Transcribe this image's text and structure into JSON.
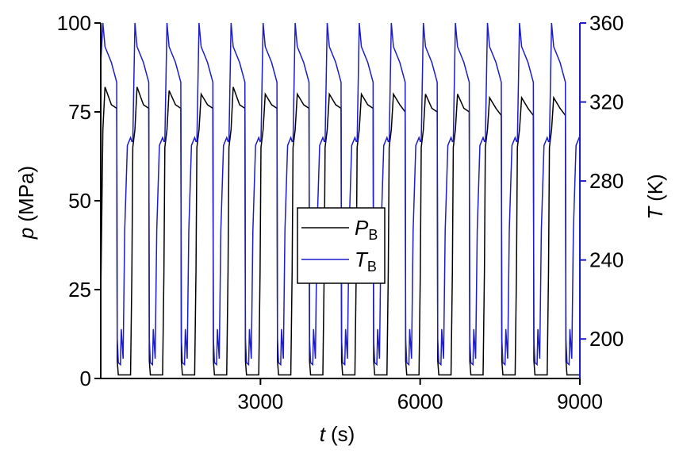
{
  "chart_data": {
    "type": "line",
    "x_label": {
      "symbol": "t",
      "unit": "(s)"
    },
    "y_label": {
      "symbol": "p",
      "unit": "(MPa)"
    },
    "y2_label": {
      "symbol": "T",
      "unit": "(K)"
    },
    "xlim": [
      0,
      9000
    ],
    "xticks": [
      3000,
      6000,
      9000
    ],
    "ylim": [
      0,
      100
    ],
    "yticks": [
      0,
      25,
      50,
      75,
      100
    ],
    "y2lim": [
      180,
      360
    ],
    "y2ticks": [
      200,
      240,
      280,
      320,
      360
    ],
    "legend": "center",
    "x": [
      0,
      40,
      80,
      200,
      300,
      310,
      330,
      370,
      385,
      420,
      450,
      500,
      560,
      585,
      602,
      642,
      682,
      802,
      902,
      912,
      932,
      972,
      987,
      1022,
      1052,
      1102,
      1162,
      1187,
      1204,
      1244,
      1284,
      1404,
      1504,
      1514,
      1534,
      1574,
      1589,
      1624,
      1654,
      1704,
      1764,
      1789,
      1806,
      1846,
      1886,
      2006,
      2106,
      2116,
      2136,
      2176,
      2191,
      2226,
      2256,
      2306,
      2366,
      2391,
      2408,
      2448,
      2488,
      2608,
      2708,
      2718,
      2738,
      2778,
      2793,
      2828,
      2858,
      2908,
      2968,
      2993,
      3010,
      3050,
      3090,
      3210,
      3310,
      3320,
      3340,
      3380,
      3395,
      3430,
      3460,
      3510,
      3570,
      3595,
      3612,
      3652,
      3692,
      3812,
      3912,
      3922,
      3942,
      3982,
      3997,
      4032,
      4062,
      4112,
      4172,
      4197,
      4214,
      4254,
      4294,
      4414,
      4514,
      4524,
      4544,
      4584,
      4599,
      4634,
      4664,
      4714,
      4774,
      4799,
      4816,
      4856,
      4896,
      5016,
      5116,
      5126,
      5146,
      5186,
      5201,
      5236,
      5266,
      5316,
      5376,
      5401,
      5418,
      5458,
      5498,
      5618,
      5718,
      5728,
      5748,
      5788,
      5803,
      5838,
      5868,
      5918,
      5978,
      6003,
      6020,
      6060,
      6100,
      6220,
      6320,
      6330,
      6350,
      6390,
      6405,
      6440,
      6470,
      6520,
      6580,
      6605,
      6622,
      6662,
      6702,
      6822,
      6922,
      6932,
      6952,
      6992,
      7007,
      7042,
      7072,
      7122,
      7182,
      7207,
      7224,
      7264,
      7304,
      7424,
      7524,
      7534,
      7554,
      7594,
      7609,
      7644,
      7674,
      7724,
      7784,
      7809,
      7826,
      7866,
      7906,
      8026,
      8126,
      8136,
      8156,
      8196,
      8211,
      8246,
      8276,
      8326,
      8386,
      8411,
      8428,
      8468,
      8508,
      8628,
      8728,
      8738,
      8758,
      8798,
      8813,
      8848,
      8878,
      8928,
      8988,
      9000
    ],
    "series": [
      {
        "name": "P",
        "name_sub": "B",
        "color": "#000000",
        "values": [
          23,
          70,
          82,
          77,
          76,
          5,
          1,
          1,
          1,
          1,
          1,
          1,
          1,
          30,
          65,
          70,
          82,
          77,
          76,
          5,
          1,
          1,
          1,
          1,
          1,
          1,
          1,
          30,
          65,
          70,
          81,
          77,
          76,
          5,
          1,
          1,
          1,
          1,
          1,
          1,
          1,
          30,
          65,
          70,
          80,
          77,
          76,
          5,
          1,
          1,
          1,
          1,
          1,
          1,
          1,
          30,
          65,
          70,
          82,
          77,
          76,
          5,
          1,
          1,
          1,
          1,
          1,
          1,
          1,
          30,
          65,
          70,
          80,
          77,
          76,
          5,
          1,
          1,
          1,
          1,
          1,
          1,
          1,
          30,
          65,
          70,
          80,
          77,
          76,
          5,
          1,
          1,
          1,
          1,
          1,
          1,
          1,
          30,
          65,
          70,
          80,
          77,
          76,
          5,
          1,
          1,
          1,
          1,
          1,
          1,
          1,
          30,
          65,
          70,
          80,
          77,
          76,
          5,
          1,
          1,
          1,
          1,
          1,
          1,
          1,
          30,
          65,
          70,
          80,
          77,
          75,
          5,
          1,
          1,
          1,
          1,
          1,
          1,
          1,
          30,
          65,
          70,
          80,
          76,
          75,
          5,
          1,
          1,
          1,
          1,
          1,
          1,
          1,
          30,
          65,
          70,
          80,
          76,
          75,
          5,
          1,
          1,
          1,
          1,
          1,
          1,
          1,
          30,
          65,
          70,
          79,
          76,
          74,
          5,
          1,
          1,
          1,
          1,
          1,
          1,
          1,
          30,
          65,
          70,
          79,
          76,
          74,
          5,
          1,
          1,
          1,
          1,
          1,
          1,
          1,
          30,
          65,
          70,
          79,
          76,
          74,
          5,
          1,
          1,
          1,
          1,
          1,
          1,
          1,
          1
        ]
      },
      {
        "name": "T",
        "name_sub": "B",
        "color": "#1c1cc8",
        "axis": "y2",
        "values": [
          340,
          360,
          348,
          340,
          330,
          200,
          188,
          187,
          205,
          190,
          255,
          298,
          302,
          300,
          300,
          360,
          348,
          340,
          330,
          200,
          188,
          187,
          205,
          190,
          255,
          298,
          302,
          300,
          300,
          360,
          348,
          340,
          330,
          200,
          188,
          187,
          205,
          190,
          255,
          298,
          302,
          300,
          300,
          360,
          348,
          340,
          330,
          200,
          188,
          187,
          205,
          190,
          255,
          298,
          302,
          300,
          300,
          360,
          348,
          340,
          330,
          200,
          188,
          187,
          205,
          190,
          255,
          298,
          302,
          300,
          300,
          360,
          348,
          340,
          330,
          200,
          188,
          187,
          205,
          190,
          255,
          298,
          302,
          300,
          300,
          360,
          348,
          340,
          330,
          200,
          188,
          187,
          205,
          190,
          255,
          298,
          302,
          300,
          300,
          360,
          348,
          340,
          330,
          200,
          188,
          187,
          205,
          190,
          255,
          298,
          302,
          300,
          300,
          360,
          348,
          340,
          330,
          200,
          188,
          187,
          205,
          190,
          255,
          298,
          302,
          300,
          300,
          360,
          348,
          340,
          330,
          200,
          188,
          187,
          205,
          190,
          255,
          298,
          302,
          300,
          300,
          360,
          348,
          340,
          330,
          200,
          188,
          187,
          205,
          190,
          255,
          298,
          302,
          300,
          300,
          360,
          348,
          340,
          330,
          200,
          188,
          187,
          205,
          190,
          255,
          298,
          302,
          300,
          300,
          360,
          348,
          340,
          330,
          200,
          188,
          187,
          205,
          190,
          255,
          298,
          302,
          300,
          300,
          360,
          348,
          340,
          330,
          200,
          188,
          187,
          205,
          190,
          255,
          298,
          302,
          300,
          300,
          360,
          348,
          340,
          330,
          200,
          188,
          187,
          205,
          190,
          255,
          298,
          302,
          301
        ]
      }
    ]
  }
}
